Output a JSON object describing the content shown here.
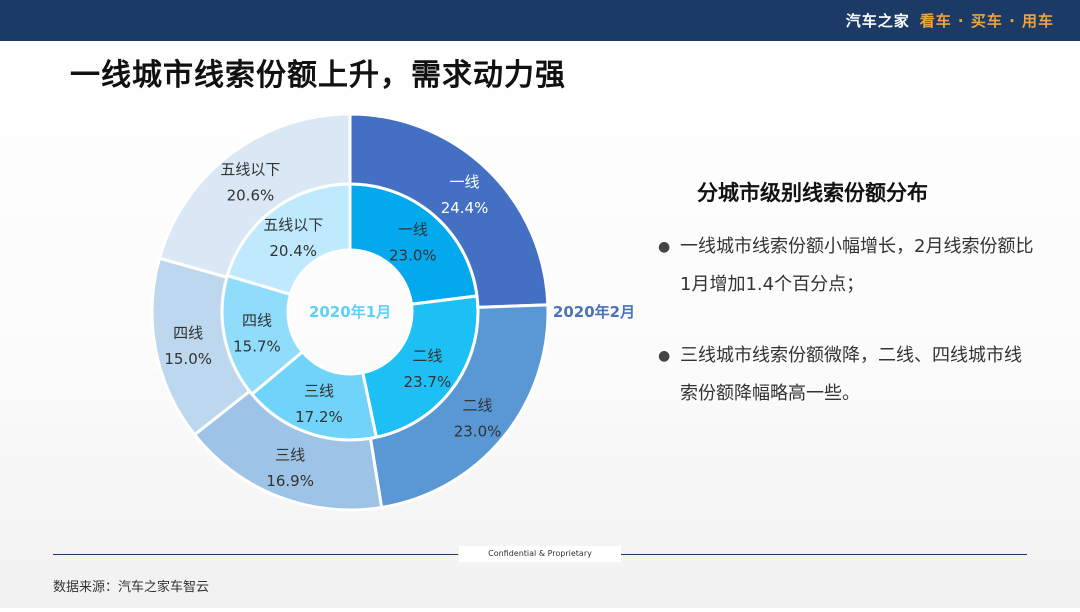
{
  "header": {
    "brand_name": "汽车之家",
    "brand_slogan": "看车 · 买车 · 用车"
  },
  "page_title": "一线城市线索份额上升，需求动力强",
  "side_panel": {
    "title": "分城市级别线索份额分布",
    "bullets": [
      "一线城市线索份额小幅增长，2月线索份额比1月增加1.4个百分点；",
      "三线城市线索份额微降，二线、四线城市线索份额降幅略高一些。"
    ]
  },
  "footer": {
    "confidential": "Confidential & Proprietary",
    "source": "数据来源：汽车之家车智云"
  },
  "chart_data": {
    "type": "donut",
    "categories": [
      "一线",
      "二线",
      "三线",
      "四线",
      "五线以下"
    ],
    "series": [
      {
        "name": "2020年1月",
        "ring": "inner",
        "values": [
          23.0,
          23.7,
          17.2,
          15.7,
          20.4
        ],
        "value_labels": [
          "23.0%",
          "23.7%",
          "17.2%",
          "15.7%",
          "20.4%"
        ],
        "colors": [
          "#03a9ec",
          "#1cc0f5",
          "#6fd3fa",
          "#8fddfb",
          "#bfeafd"
        ]
      },
      {
        "name": "2020年2月",
        "ring": "outer",
        "values": [
          24.4,
          23.0,
          16.9,
          15.0,
          20.6
        ],
        "value_labels": [
          "24.4%",
          "23.0%",
          "16.9%",
          "15.0%",
          "20.6%"
        ],
        "colors": [
          "#4470c3",
          "#5997d5",
          "#9dc3e6",
          "#bdd7ee",
          "#dae8f5"
        ]
      }
    ],
    "series_label_colors": {
      "2020年1月": "#5fd0f8",
      "2020年2月": "#4a73b8"
    }
  }
}
